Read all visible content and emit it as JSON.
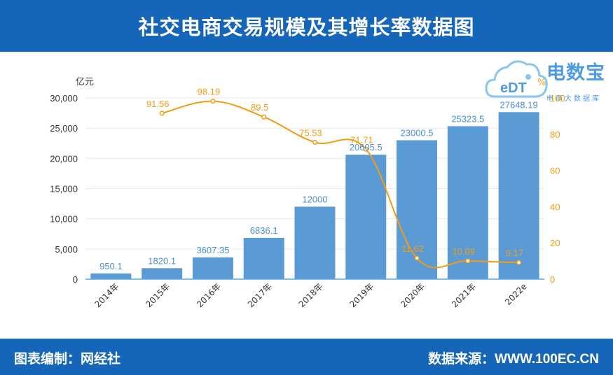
{
  "header": {
    "title": "社交电商交易规模及其增长率数据图"
  },
  "footer": {
    "left": "图表编制：网经社",
    "right": "数据来源：WWW.100EC.CN"
  },
  "logo": {
    "name": "电数宝",
    "subtitle": "电商大数据库",
    "badge": "eDT"
  },
  "colors": {
    "bar": "#5b9bd5",
    "line": "#f39c12",
    "header": "#1565b8"
  },
  "chart_data": {
    "type": "bar",
    "title": "社交电商交易规模及其增长率数据图",
    "categories": [
      "2014年",
      "2015年",
      "2016年",
      "2017年",
      "2018年",
      "2019年",
      "2020年",
      "2021年",
      "2022e"
    ],
    "series": [
      {
        "type": "bar",
        "axis": "left",
        "values": [
          950.1,
          1820.1,
          3607.35,
          6836.1,
          12000,
          20605.5,
          23000.5,
          25323.5,
          27648.19
        ],
        "labels": [
          "950.1",
          "1820.1",
          "3607.35",
          "6836.1",
          "12000",
          "20605.5",
          "23000.5",
          "25323.5",
          "27648.19"
        ]
      },
      {
        "type": "line",
        "axis": "right",
        "values": [
          null,
          91.56,
          98.19,
          89.5,
          75.53,
          71.71,
          11.62,
          10.09,
          9.17
        ],
        "labels": [
          "",
          "91.56",
          "98.19",
          "89.5",
          "75.53",
          "71.71",
          "11.62",
          "10.09",
          "9.17"
        ]
      }
    ],
    "y_left": {
      "unit": "亿元",
      "ylim": [
        0,
        30000
      ],
      "ticks": [
        0,
        5000,
        10000,
        15000,
        20000,
        25000,
        30000
      ],
      "tick_labels": [
        "0",
        "5,000",
        "10,000",
        "15,000",
        "20,000",
        "25,000",
        "30,000"
      ]
    },
    "y_right": {
      "unit": "%",
      "ylim": [
        0,
        100
      ],
      "ticks": [
        0,
        20,
        40,
        60,
        80,
        100
      ],
      "tick_labels": [
        "0",
        "20",
        "40",
        "60",
        "80",
        "100"
      ]
    },
    "grid": true
  }
}
